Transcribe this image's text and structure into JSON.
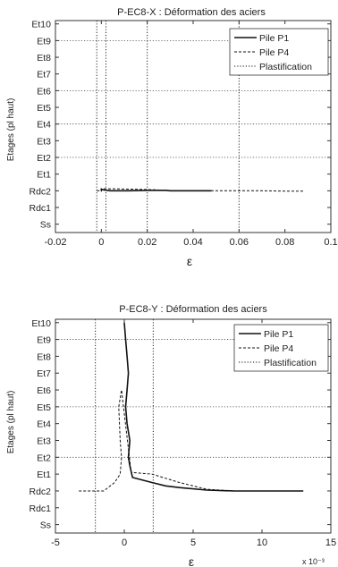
{
  "chart_data": [
    {
      "type": "line",
      "title": "P-EC8-X : Déformation des aciers",
      "xlabel": "ε",
      "ylabel": "Etages (pl haut)",
      "xlim": [
        -0.02,
        0.1
      ],
      "x_ticks": [
        "-0.02",
        "0",
        "0.02",
        "0.04",
        "0.06",
        "0.08",
        "0.1"
      ],
      "x_tick_values": [
        -0.02,
        0,
        0.02,
        0.04,
        0.06,
        0.08,
        0.1
      ],
      "x_exponent": "",
      "y_ticks": [
        "Et10",
        "Et9",
        "Et8",
        "Et7",
        "Et6",
        "Et5",
        "Et4",
        "Et3",
        "Et2",
        "Et1",
        "Rdc2",
        "Rdc1",
        "Ss"
      ],
      "y_tick_values": [
        12,
        11,
        10,
        9,
        8,
        7,
        6,
        5,
        4,
        3,
        2,
        1,
        0
      ],
      "ylim": [
        -0.5,
        12.2
      ],
      "legend": [
        "Pile P1",
        "Pile P4",
        "Plastification"
      ],
      "legend_position": "top-right",
      "grid_y": [
        11,
        8,
        6,
        4
      ],
      "series": [
        {
          "name": "Pile P1",
          "style": "solid",
          "x": [
            -0.0002,
            0.0,
            0.0,
            0.001,
            0.004,
            0.012,
            0.02,
            0.028,
            0.03,
            0.04,
            0.048
          ],
          "y": [
            2.0,
            2.0,
            2.1,
            2.05,
            2.0,
            2.0,
            2.03,
            2.03,
            2.0,
            2.0,
            2.0
          ]
        },
        {
          "name": "Pile P4",
          "style": "dashed",
          "x": [
            -0.002,
            0.0,
            0.0,
            0.006,
            0.02,
            0.03,
            0.05,
            0.07,
            0.08,
            0.085,
            0.088
          ],
          "y": [
            2.0,
            2.0,
            2.12,
            2.12,
            2.08,
            2.02,
            2.0,
            2.0,
            1.98,
            1.98,
            1.98
          ]
        },
        {
          "name": "Plastification",
          "style": "dotted",
          "vlines": [
            -0.002,
            0.002,
            0.02,
            0.06
          ]
        }
      ]
    },
    {
      "type": "line",
      "title": "P-EC8-Y : Déformation des aciers",
      "xlabel": "ε",
      "ylabel": "Etages (pl haut)",
      "xlim": [
        -5,
        15
      ],
      "x_ticks": [
        "-5",
        "0",
        "5",
        "10",
        "15"
      ],
      "x_tick_values": [
        -5,
        0,
        5,
        10,
        15
      ],
      "x_exponent": "x 10⁻³",
      "y_ticks": [
        "Et10",
        "Et9",
        "Et8",
        "Et7",
        "Et6",
        "Et5",
        "Et4",
        "Et3",
        "Et2",
        "Et1",
        "Rdc2",
        "Rdc1",
        "Ss"
      ],
      "y_tick_values": [
        12,
        11,
        10,
        9,
        8,
        7,
        6,
        5,
        4,
        3,
        2,
        1,
        0
      ],
      "ylim": [
        -0.5,
        12.2
      ],
      "legend": [
        "Pile P1",
        "Pile P4",
        "Plastification"
      ],
      "legend_position": "top-right",
      "grid_y": [
        11,
        7,
        4
      ],
      "series": [
        {
          "name": "Pile P1",
          "style": "solid",
          "x": [
            0,
            0.1,
            0.2,
            0.3,
            0.2,
            0.1,
            0.2,
            0.4,
            0.3,
            0.4,
            0.6,
            2.0,
            3.0,
            4.0,
            6.0,
            8.0,
            10.0,
            13.0
          ],
          "y": [
            12.0,
            11.0,
            10.0,
            9.0,
            8.0,
            7.0,
            6.0,
            5.0,
            4.0,
            3.5,
            2.8,
            2.5,
            2.3,
            2.2,
            2.05,
            2.0,
            2.0,
            2.0
          ]
        },
        {
          "name": "Pile P4",
          "style": "dashed",
          "x": [
            -3.3,
            -1.5,
            -0.7,
            -0.3,
            -0.2,
            -0.3,
            -0.4,
            -0.2,
            0.5,
            2.0,
            4.0,
            6.0,
            8.0
          ],
          "y": [
            2.0,
            2.0,
            2.5,
            3.0,
            4.0,
            5.0,
            7.0,
            8.0,
            3.1,
            3.0,
            2.5,
            2.1,
            2.0
          ]
        },
        {
          "name": "Plastification",
          "style": "dotted",
          "vlines": [
            -2.1,
            2.1
          ]
        }
      ]
    }
  ]
}
